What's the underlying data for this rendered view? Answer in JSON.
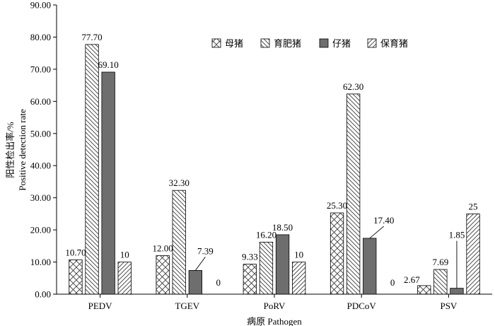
{
  "chart_data": {
    "type": "bar",
    "title": "",
    "xlabel": "病原 Pathogen",
    "ylabel": "阳性检出率/% Positive detection rate",
    "ylabel_lines": [
      "阳性检出率/%",
      "Positive detection rate"
    ],
    "ylim": [
      0,
      90
    ],
    "yticks": [
      0,
      10,
      20,
      30,
      40,
      50,
      60,
      70,
      80,
      90
    ],
    "ytick_labels": [
      "0.00",
      "10.00",
      "20.00",
      "30.00",
      "40.00",
      "50.00",
      "60.00",
      "70.00",
      "80.00",
      "90.00"
    ],
    "categories": [
      "PEDV",
      "TGEV",
      "PoRV",
      "PDCoV",
      "PSV"
    ],
    "legend_position": "top-right",
    "series": [
      {
        "name": "母猪",
        "pattern": "crosshatch",
        "values": [
          10.7,
          12.0,
          9.33,
          25.3,
          2.67
        ],
        "labels": [
          "10.70",
          "12.00",
          "9.33",
          "25.30",
          "2.67"
        ]
      },
      {
        "name": "育肥猪",
        "pattern": "backslash",
        "values": [
          77.7,
          32.3,
          16.2,
          62.3,
          7.69
        ],
        "labels": [
          "77.70",
          "32.30",
          "16.20",
          "62.30",
          "7.69"
        ]
      },
      {
        "name": "仔猪",
        "pattern": "solid",
        "values": [
          69.1,
          7.39,
          18.5,
          17.4,
          1.85
        ],
        "labels": [
          "69.10",
          "7.39",
          "18.50",
          "17.40",
          "1.85"
        ]
      },
      {
        "name": "保育猪",
        "pattern": "forwardslash",
        "values": [
          10,
          0,
          10,
          0,
          25
        ],
        "labels": [
          "10",
          "0",
          "10",
          "0",
          "25"
        ]
      }
    ]
  }
}
